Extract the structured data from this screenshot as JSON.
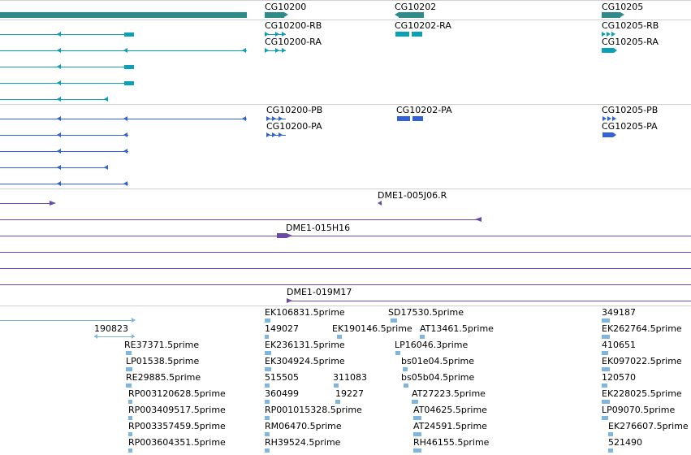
{
  "colors": {
    "gene": "#2e8b8b",
    "transcript_cyan": "#0aa0b8",
    "transcript_blue": "#2f63d6",
    "clone_purple": "#6a4aa6",
    "est_light": "#7fb6e0",
    "separator": "#d0d0d0"
  },
  "genes": [
    {
      "label": "CG10200"
    },
    {
      "label": "CG10202"
    },
    {
      "label": "CG10205"
    }
  ],
  "transcripts_a": [
    {
      "label": "CG10200-RB"
    },
    {
      "label": "CG10200-RA"
    },
    {
      "label": "CG10202-RA"
    },
    {
      "label": "CG10205-RB"
    },
    {
      "label": "CG10205-RA"
    }
  ],
  "transcripts_b": [
    {
      "label": "CG10200-PB"
    },
    {
      "label": "CG10200-PA"
    },
    {
      "label": "CG10202-PA"
    },
    {
      "label": "CG10205-PB"
    },
    {
      "label": "CG10205-PA"
    }
  ],
  "clones": [
    {
      "label": "DME1-005J06.R"
    },
    {
      "label": "DME1-015H16"
    },
    {
      "label": "DME1-019M17"
    }
  ],
  "ests": [
    {
      "label": "EK106831.5prime"
    },
    {
      "label": "SD17530.5prime"
    },
    {
      "label": "349187"
    },
    {
      "label": "190823"
    },
    {
      "label": "149027"
    },
    {
      "label": "EK190146.5prime"
    },
    {
      "label": "AT13461.5prime"
    },
    {
      "label": "EK262764.5prime"
    },
    {
      "label": "RE37371.5prime"
    },
    {
      "label": "EK236131.5prime"
    },
    {
      "label": "LP16046.3prime"
    },
    {
      "label": "410651"
    },
    {
      "label": "LP01538.5prime"
    },
    {
      "label": "EK304924.5prime"
    },
    {
      "label": "bs01e04.5prime"
    },
    {
      "label": "EK097022.5prime"
    },
    {
      "label": "RE29885.5prime"
    },
    {
      "label": "515505"
    },
    {
      "label": "311083"
    },
    {
      "label": "bs05b04.5prime"
    },
    {
      "label": "120570"
    },
    {
      "label": "RP003120628.5prime"
    },
    {
      "label": "360499"
    },
    {
      "label": "19227"
    },
    {
      "label": "AT27223.5prime"
    },
    {
      "label": "EK228025.5prime"
    },
    {
      "label": "RP003409517.5prime"
    },
    {
      "label": "RP001015328.5prime"
    },
    {
      "label": "AT04625.5prime"
    },
    {
      "label": "LP09070.5prime"
    },
    {
      "label": "RP003357459.5prime"
    },
    {
      "label": "RM06470.5prime"
    },
    {
      "label": "AT24591.5prime"
    },
    {
      "label": "EK276607.5prime"
    },
    {
      "label": "RP003604351.5prime"
    },
    {
      "label": "RH39524.5prime"
    },
    {
      "label": "RH46155.5prime"
    },
    {
      "label": "521490"
    }
  ]
}
